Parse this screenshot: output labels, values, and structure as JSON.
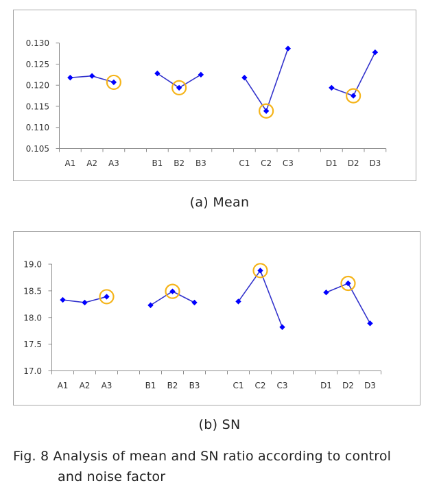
{
  "chart_data": [
    {
      "type": "line",
      "title": "",
      "caption": "(a)  Mean",
      "xlabel": "",
      "ylabel": "",
      "ylim": [
        0.105,
        0.13
      ],
      "yticks": [
        "0.130",
        "0.125",
        "0.120",
        "0.115",
        "0.110",
        "0.105"
      ],
      "ytick_values": [
        0.13,
        0.125,
        0.12,
        0.115,
        0.11,
        0.105
      ],
      "grid": false,
      "legend": "none",
      "series": [
        {
          "name": "A",
          "categories": [
            "A1",
            "A2",
            "A3"
          ],
          "values": [
            0.1218,
            0.1222,
            0.1207
          ],
          "highlight": "A3"
        },
        {
          "name": "B",
          "categories": [
            "B1",
            "B2",
            "B3"
          ],
          "values": [
            0.1228,
            0.1194,
            0.1225
          ],
          "highlight": "B2"
        },
        {
          "name": "C",
          "categories": [
            "C1",
            "C2",
            "C3"
          ],
          "values": [
            0.1218,
            0.1139,
            0.1287
          ],
          "highlight": "C2"
        },
        {
          "name": "D",
          "categories": [
            "D1",
            "D2",
            "D3"
          ],
          "values": [
            0.1194,
            0.1175,
            0.1278
          ],
          "highlight": "D2"
        }
      ],
      "colors": {
        "line": "#3333cc",
        "marker": "#0000ff",
        "highlight": "#f5b41a",
        "axis": "#8c8c8c"
      }
    },
    {
      "type": "line",
      "title": "",
      "caption": "(b)  SN",
      "xlabel": "",
      "ylabel": "",
      "ylim": [
        17.0,
        19.0
      ],
      "yticks": [
        "19.0",
        "18.5",
        "18.0",
        "17.5",
        "17.0"
      ],
      "ytick_values": [
        19.0,
        18.5,
        18.0,
        17.5,
        17.0
      ],
      "grid": false,
      "legend": "none",
      "series": [
        {
          "name": "A",
          "categories": [
            "A1",
            "A2",
            "A3"
          ],
          "values": [
            18.33,
            18.28,
            18.39
          ],
          "highlight": "A3"
        },
        {
          "name": "B",
          "categories": [
            "B1",
            "B2",
            "B3"
          ],
          "values": [
            18.23,
            18.49,
            18.28
          ],
          "highlight": "B2"
        },
        {
          "name": "C",
          "categories": [
            "C1",
            "C2",
            "C3"
          ],
          "values": [
            18.3,
            18.88,
            17.82
          ],
          "highlight": "C2"
        },
        {
          "name": "D",
          "categories": [
            "D1",
            "D2",
            "D3"
          ],
          "values": [
            18.47,
            18.64,
            17.89
          ],
          "highlight": "D2"
        }
      ],
      "colors": {
        "line": "#3333cc",
        "marker": "#0000ff",
        "highlight": "#f5b41a",
        "axis": "#8c8c8c"
      }
    }
  ],
  "figure_caption": {
    "line1": "Fig. 8 Analysis of mean and SN ratio according to control",
    "line2": "and noise factor"
  }
}
